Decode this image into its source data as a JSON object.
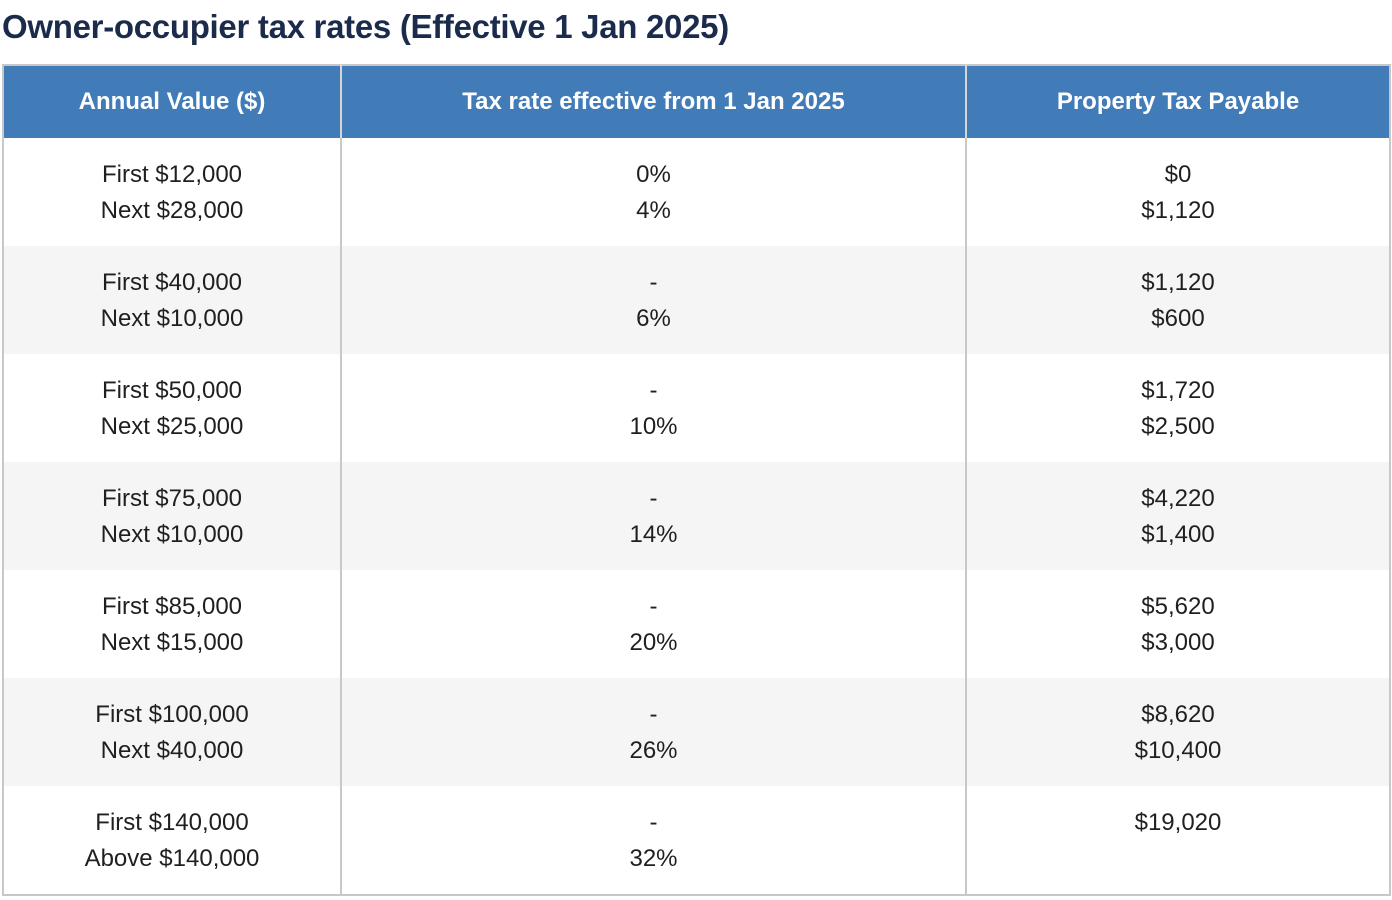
{
  "title": "Owner-occupier tax rates (Effective 1 Jan 2025)",
  "headers": [
    "Annual Value ($)",
    "Tax rate effective from 1 Jan 2025",
    "Property Tax Payable"
  ],
  "rows": [
    {
      "annual_value": [
        "First $12,000",
        "Next $28,000"
      ],
      "tax_rate": [
        "0%",
        "4%"
      ],
      "payable": [
        "$0",
        "$1,120"
      ]
    },
    {
      "annual_value": [
        "First $40,000",
        "Next $10,000"
      ],
      "tax_rate": [
        "-",
        "6%"
      ],
      "payable": [
        "$1,120",
        "$600"
      ]
    },
    {
      "annual_value": [
        "First $50,000",
        "Next $25,000"
      ],
      "tax_rate": [
        "-",
        "10%"
      ],
      "payable": [
        "$1,720",
        "$2,500"
      ]
    },
    {
      "annual_value": [
        "First $75,000",
        "Next $10,000"
      ],
      "tax_rate": [
        "-",
        "14%"
      ],
      "payable": [
        "$4,220",
        "$1,400"
      ]
    },
    {
      "annual_value": [
        "First $85,000",
        "Next $15,000"
      ],
      "tax_rate": [
        "-",
        "20%"
      ],
      "payable": [
        "$5,620",
        "$3,000"
      ]
    },
    {
      "annual_value": [
        "First $100,000",
        "Next $40,000"
      ],
      "tax_rate": [
        "-",
        "26%"
      ],
      "payable": [
        "$8,620",
        "$10,400"
      ]
    },
    {
      "annual_value": [
        "First $140,000",
        "Above $140,000"
      ],
      "tax_rate": [
        "-",
        "32%"
      ],
      "payable": [
        "$19,020",
        ""
      ]
    }
  ],
  "colors": {
    "header_bg": "#427cb8",
    "header_text": "#ffffff",
    "title_text": "#1b2b4b",
    "alt_row_bg": "#f5f5f5"
  }
}
